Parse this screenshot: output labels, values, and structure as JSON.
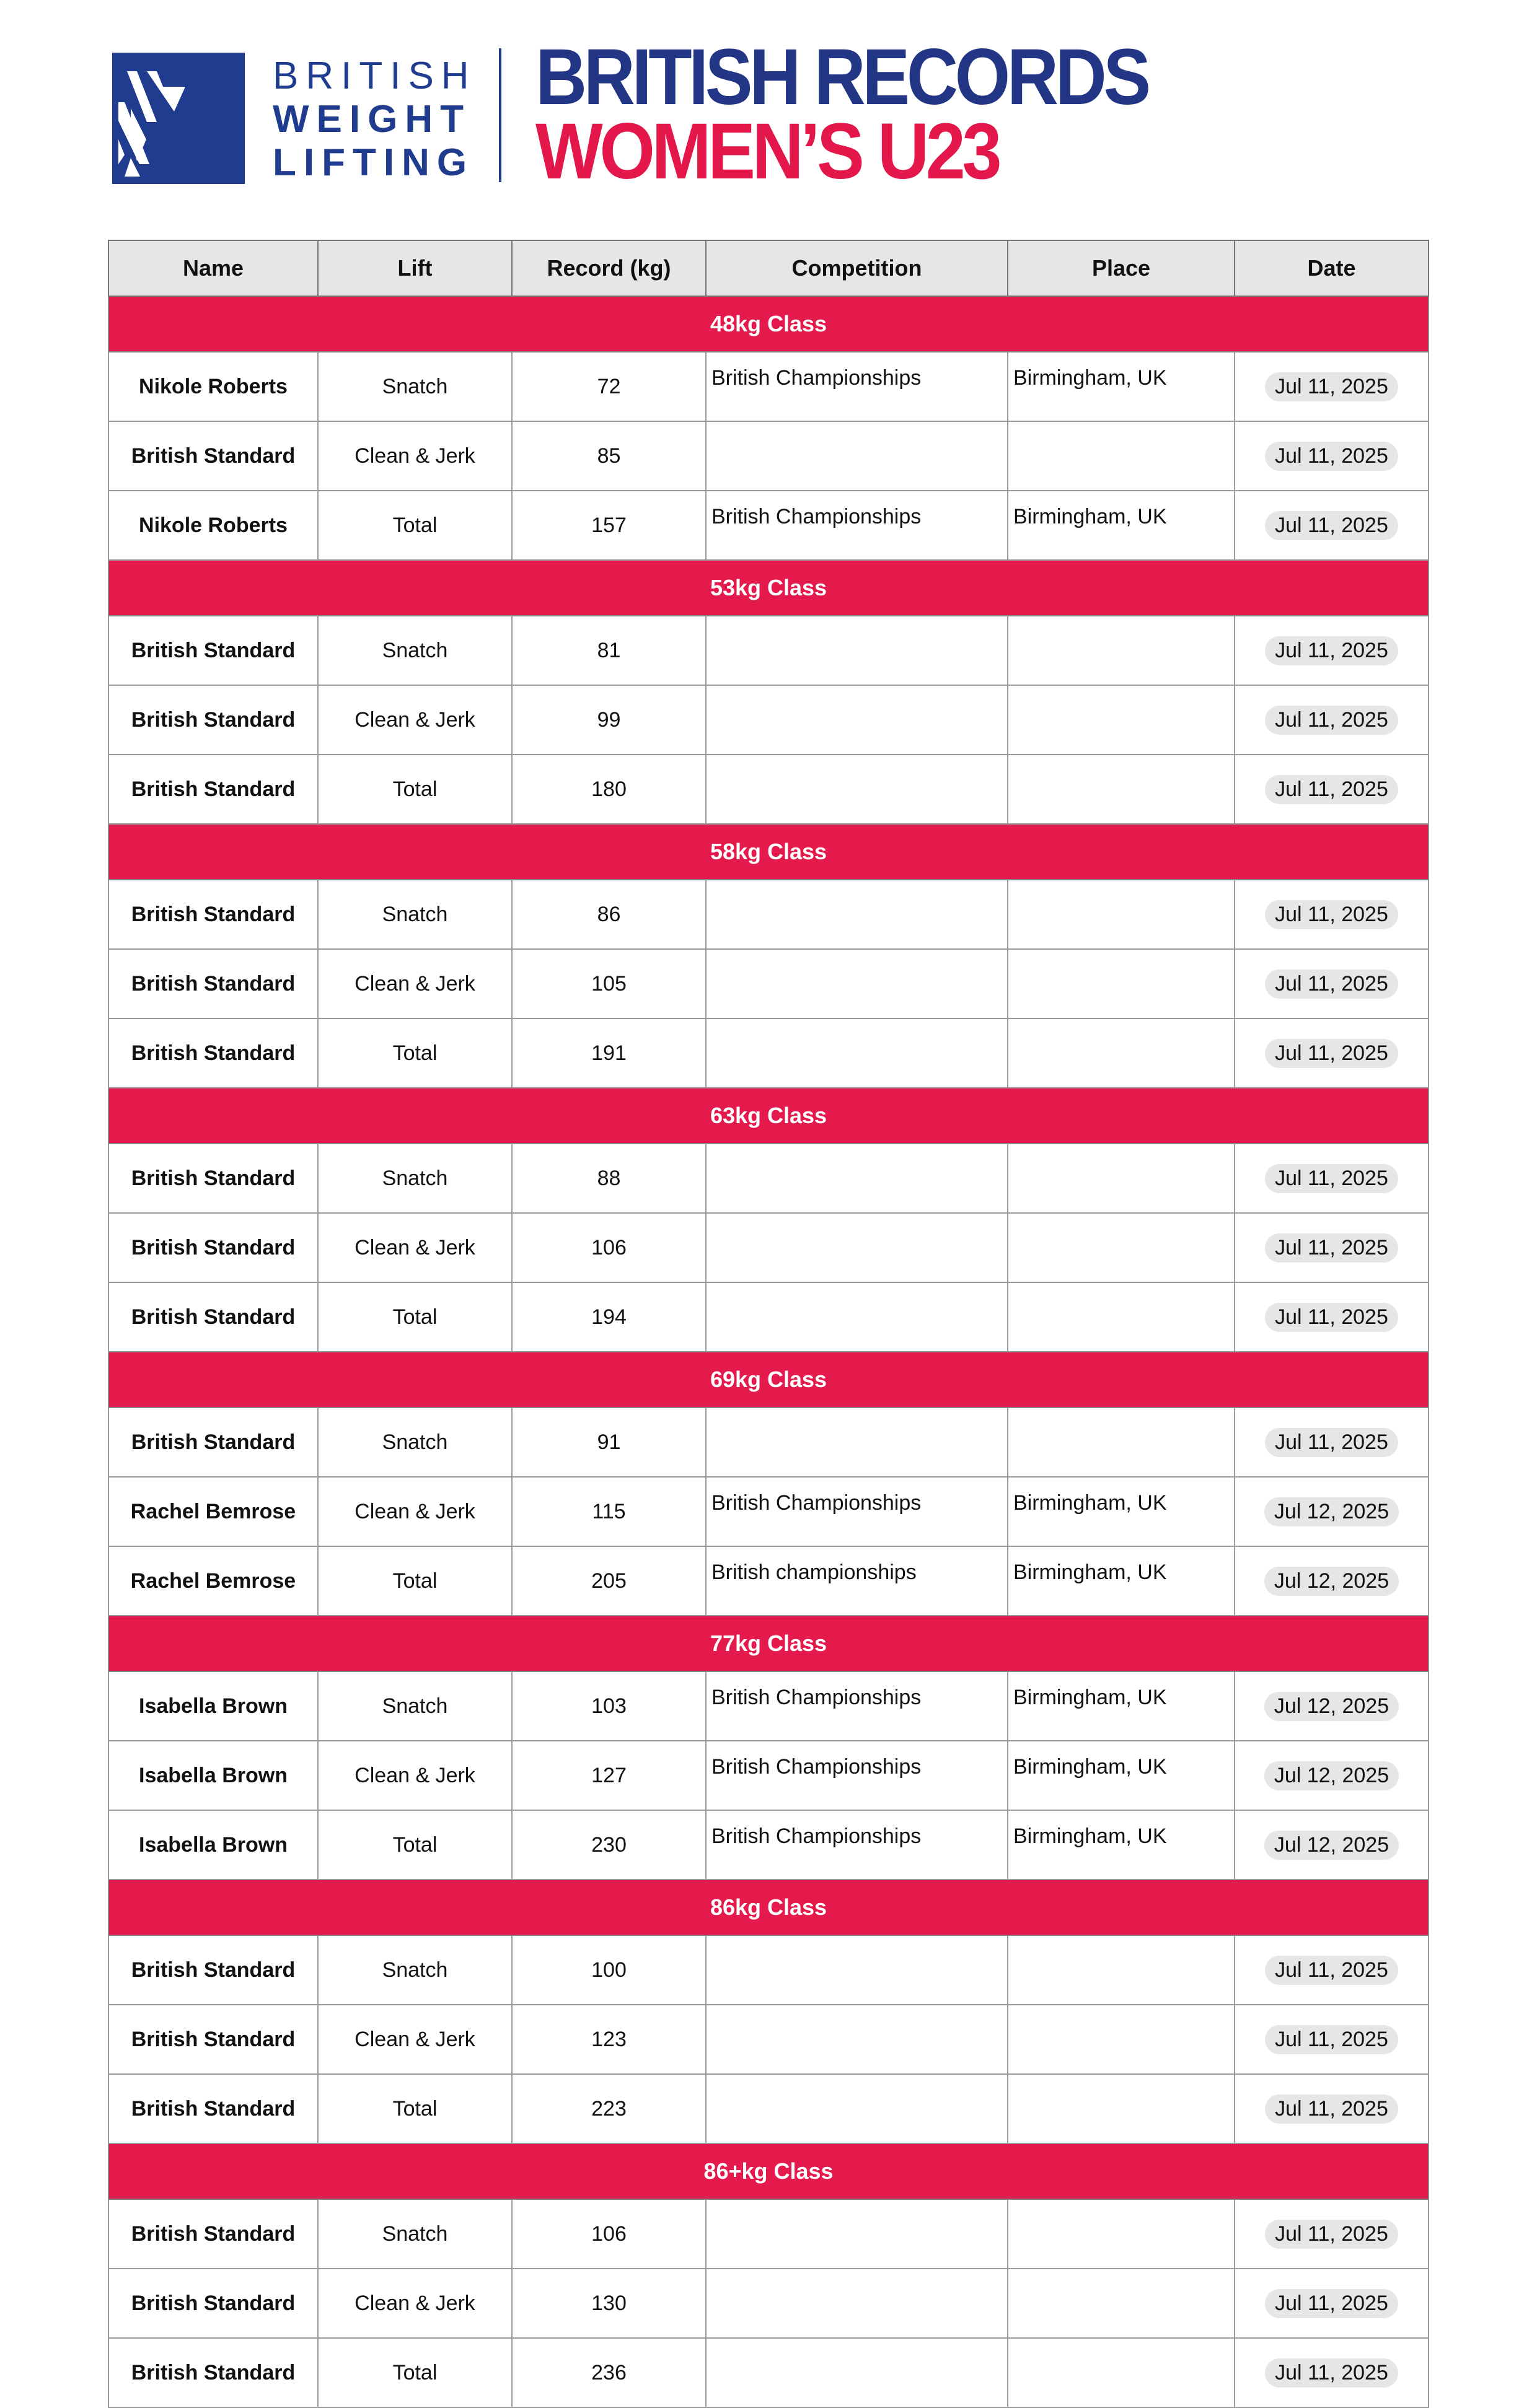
{
  "logo": {
    "lines": [
      "BRITISH",
      "WEIGHT",
      "LIFTING"
    ]
  },
  "title": {
    "line1": "BRITISH RECORDS",
    "line2": "WOMEN’S U23"
  },
  "colors": {
    "brand_blue": "#1f3c8f",
    "title_blue": "#233685",
    "accent_red": "#e31a4b",
    "header_gray": "#e6e6e6"
  },
  "table": {
    "headers": [
      "Name",
      "Lift",
      "Record (kg)",
      "Competition",
      "Place",
      "Date"
    ],
    "classes": [
      {
        "label": "48kg Class",
        "rows": [
          [
            "Nikole Roberts",
            "Snatch",
            "72",
            "British Championships",
            "Birmingham, UK",
            "Jul 11, 2025"
          ],
          [
            "British Standard",
            "Clean & Jerk",
            "85",
            "",
            "",
            "Jul 11, 2025"
          ],
          [
            "Nikole Roberts",
            "Total",
            "157",
            "British Championships",
            "Birmingham, UK",
            "Jul 11, 2025"
          ]
        ]
      },
      {
        "label": "53kg Class",
        "rows": [
          [
            "British Standard",
            "Snatch",
            "81",
            "",
            "",
            "Jul 11, 2025"
          ],
          [
            "British Standard",
            "Clean & Jerk",
            "99",
            "",
            "",
            "Jul 11, 2025"
          ],
          [
            "British Standard",
            "Total",
            "180",
            "",
            "",
            "Jul 11, 2025"
          ]
        ]
      },
      {
        "label": "58kg Class",
        "rows": [
          [
            "British Standard",
            "Snatch",
            "86",
            "",
            "",
            "Jul 11, 2025"
          ],
          [
            "British Standard",
            "Clean & Jerk",
            "105",
            "",
            "",
            "Jul 11, 2025"
          ],
          [
            "British Standard",
            "Total",
            "191",
            "",
            "",
            "Jul 11, 2025"
          ]
        ]
      },
      {
        "label": "63kg Class",
        "rows": [
          [
            "British Standard",
            "Snatch",
            "88",
            "",
            "",
            "Jul 11, 2025"
          ],
          [
            "British Standard",
            "Clean & Jerk",
            "106",
            "",
            "",
            "Jul 11, 2025"
          ],
          [
            "British Standard",
            "Total",
            "194",
            "",
            "",
            "Jul 11, 2025"
          ]
        ]
      },
      {
        "label": "69kg Class",
        "rows": [
          [
            "British Standard",
            "Snatch",
            "91",
            "",
            "",
            "Jul 11, 2025"
          ],
          [
            "Rachel Bemrose",
            "Clean & Jerk",
            "115",
            "British Championships",
            "Birmingham, UK",
            "Jul 12, 2025"
          ],
          [
            "Rachel Bemrose",
            "Total",
            "205",
            "British championships",
            "Birmingham, UK",
            "Jul 12, 2025"
          ]
        ]
      },
      {
        "label": "77kg Class",
        "rows": [
          [
            "Isabella Brown",
            "Snatch",
            "103",
            "British Championships",
            "Birmingham, UK",
            "Jul 12, 2025"
          ],
          [
            "Isabella Brown",
            "Clean & Jerk",
            "127",
            "British Championships",
            "Birmingham, UK",
            "Jul 12, 2025"
          ],
          [
            "Isabella Brown",
            "Total",
            "230",
            "British Championships",
            "Birmingham, UK",
            "Jul 12, 2025"
          ]
        ]
      },
      {
        "label": "86kg Class",
        "rows": [
          [
            "British Standard",
            "Snatch",
            "100",
            "",
            "",
            "Jul 11, 2025"
          ],
          [
            "British Standard",
            "Clean & Jerk",
            "123",
            "",
            "",
            "Jul 11, 2025"
          ],
          [
            "British Standard",
            "Total",
            "223",
            "",
            "",
            "Jul 11, 2025"
          ]
        ]
      },
      {
        "label": "86+kg Class",
        "rows": [
          [
            "British Standard",
            "Snatch",
            "106",
            "",
            "",
            "Jul 11, 2025"
          ],
          [
            "British Standard",
            "Clean & Jerk",
            "130",
            "",
            "",
            "Jul 11, 2025"
          ],
          [
            "British Standard",
            "Total",
            "236",
            "",
            "",
            "Jul 11, 2025"
          ]
        ]
      }
    ]
  }
}
